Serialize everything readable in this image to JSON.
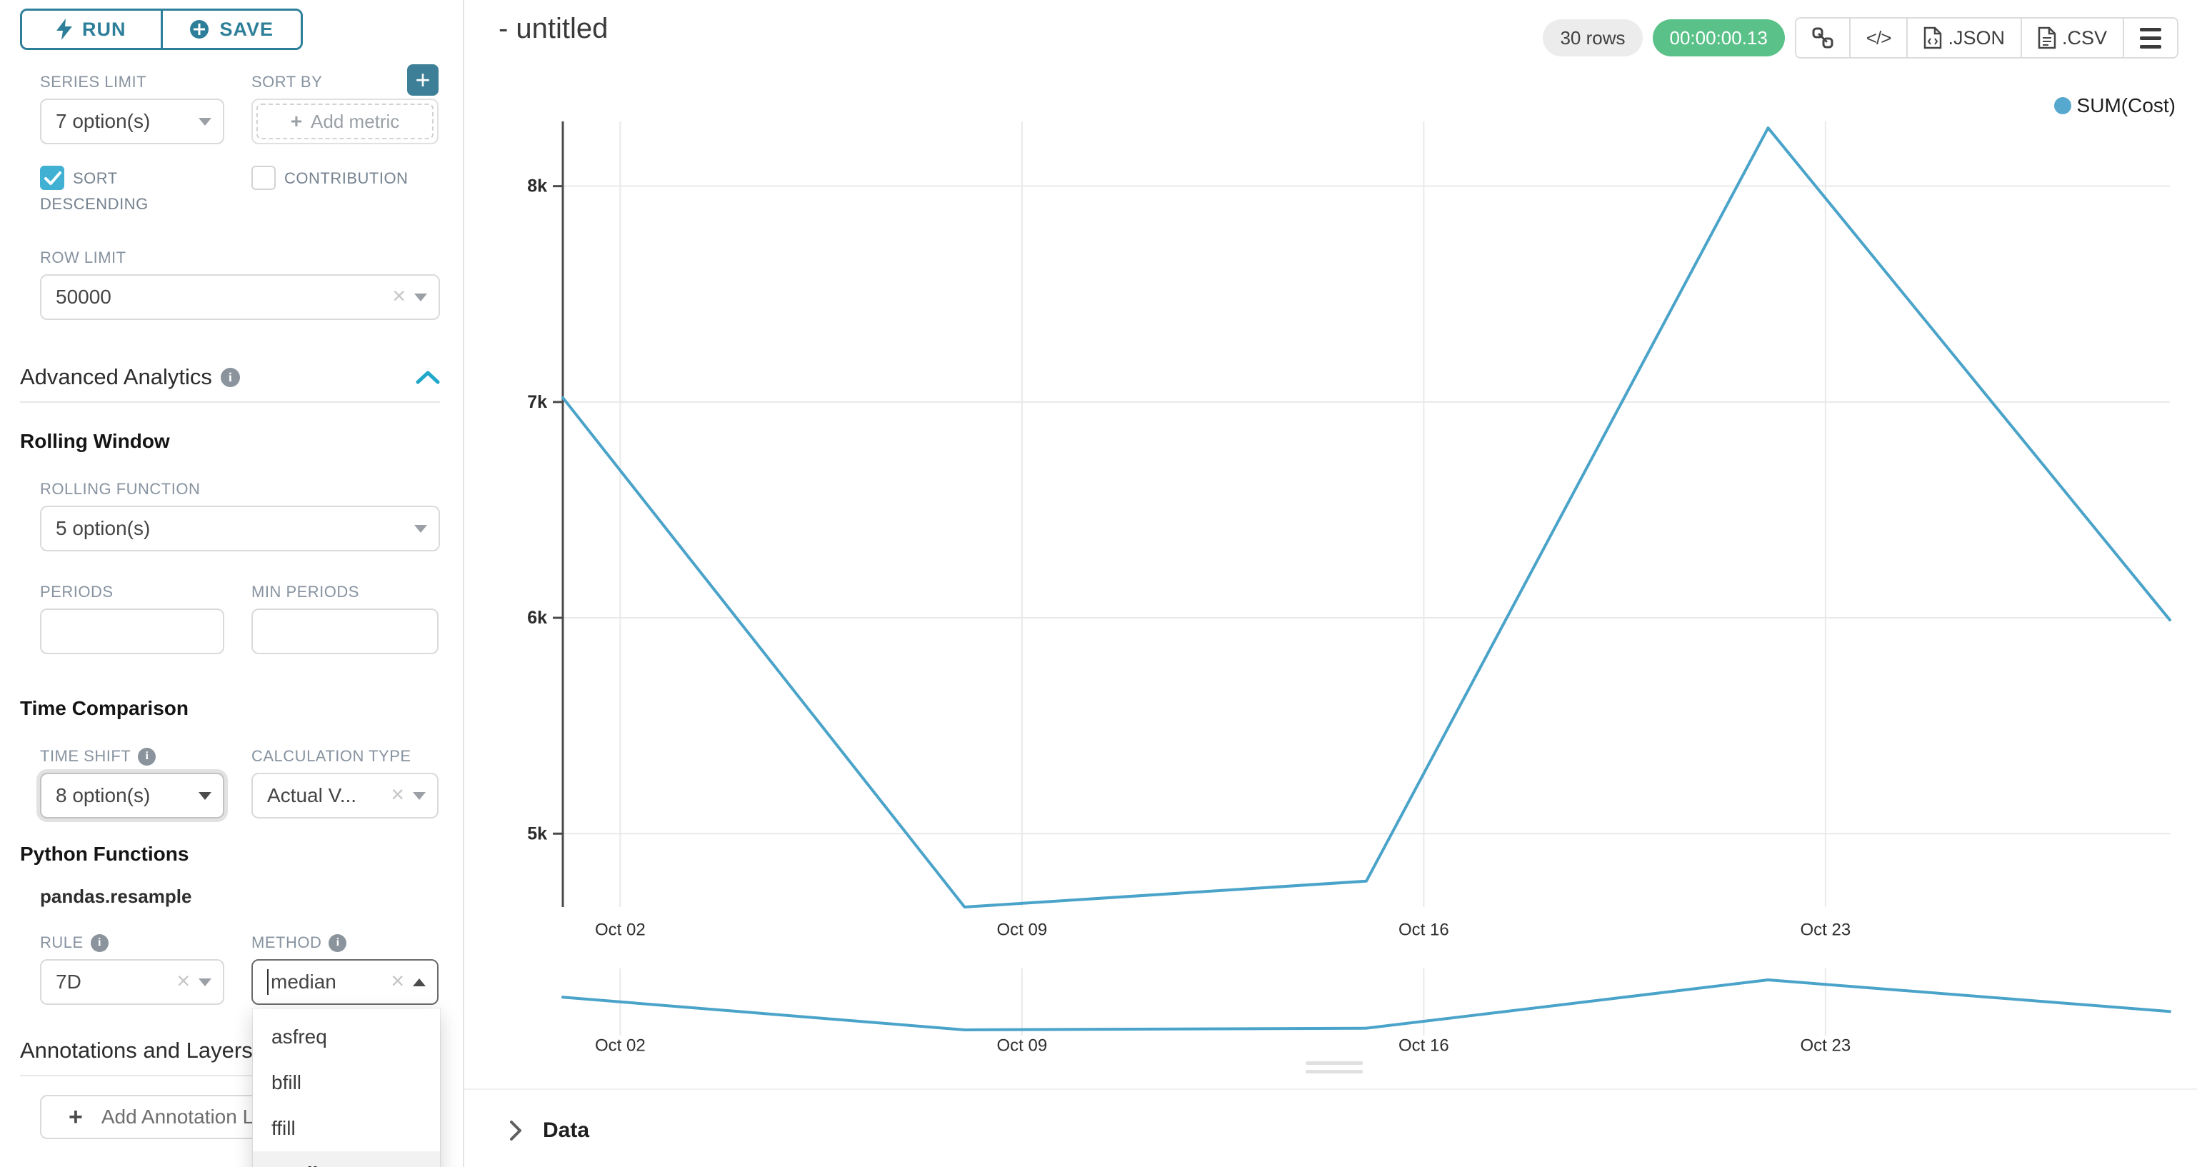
{
  "controls": {
    "run": "RUN",
    "save": "SAVE",
    "series_limit": {
      "label": "SERIES LIMIT",
      "value": "7 option(s)"
    },
    "sort_by": {
      "label": "SORT BY",
      "placeholder": "Add metric"
    },
    "sort_descending": {
      "label": "SORT DESCENDING",
      "checked": true
    },
    "contribution": {
      "label": "CONTRIBUTION",
      "checked": false
    },
    "row_limit": {
      "label": "ROW LIMIT",
      "value": "50000"
    },
    "advanced_analytics_title": "Advanced Analytics",
    "rolling_window_title": "Rolling Window",
    "rolling_function": {
      "label": "ROLLING FUNCTION",
      "value": "5 option(s)"
    },
    "periods": {
      "label": "PERIODS",
      "value": ""
    },
    "min_periods": {
      "label": "MIN PERIODS",
      "value": ""
    },
    "time_comparison_title": "Time Comparison",
    "time_shift": {
      "label": "TIME SHIFT",
      "value": "8 option(s)"
    },
    "calculation_type": {
      "label": "CALCULATION TYPE",
      "value": "Actual V..."
    },
    "python_functions_title": "Python Functions",
    "python_functions_subtitle": "pandas.resample",
    "rule": {
      "label": "RULE",
      "value": "7D"
    },
    "method": {
      "label": "METHOD",
      "value": "median",
      "options": [
        "asfreq",
        "bfill",
        "ffill",
        "median"
      ],
      "selected": "median"
    },
    "annotations_title": "Annotations and Layers",
    "add_annotation_label": "Add Annotation Layer"
  },
  "header": {
    "title": "- untitled",
    "rows_badge": "30 rows",
    "timer_badge": "00:00:00.13",
    "json_label": ".JSON",
    "csv_label": ".CSV"
  },
  "data_panel": {
    "title": "Data"
  },
  "chart_data": {
    "type": "line",
    "title": "",
    "legend": [
      {
        "label": "SUM(Cost)",
        "color": "#57a8ce"
      }
    ],
    "series": [
      {
        "name": "SUM(Cost)",
        "x_dates": [
          "Oct 01",
          "Oct 08",
          "Oct 15",
          "Oct 22",
          "Oct 29"
        ],
        "x_days": [
          1,
          8,
          15,
          22,
          29
        ],
        "values": [
          7020,
          4660,
          4780,
          8270,
          5990
        ]
      }
    ],
    "x_ticks": [
      {
        "label": "Oct 02",
        "day": 2
      },
      {
        "label": "Oct 09",
        "day": 9
      },
      {
        "label": "Oct 16",
        "day": 16
      },
      {
        "label": "Oct 23",
        "day": 23
      }
    ],
    "y_ticks": [
      {
        "label": "5k",
        "value": 5000
      },
      {
        "label": "6k",
        "value": 6000
      },
      {
        "label": "7k",
        "value": 7000
      },
      {
        "label": "8k",
        "value": 8000
      }
    ],
    "ylim": [
      4660,
      8300
    ],
    "xlim_days": [
      1,
      29
    ],
    "line_color": "#4aa3c9",
    "grid": true,
    "legend_position": "top-right",
    "mini_chart": true
  }
}
